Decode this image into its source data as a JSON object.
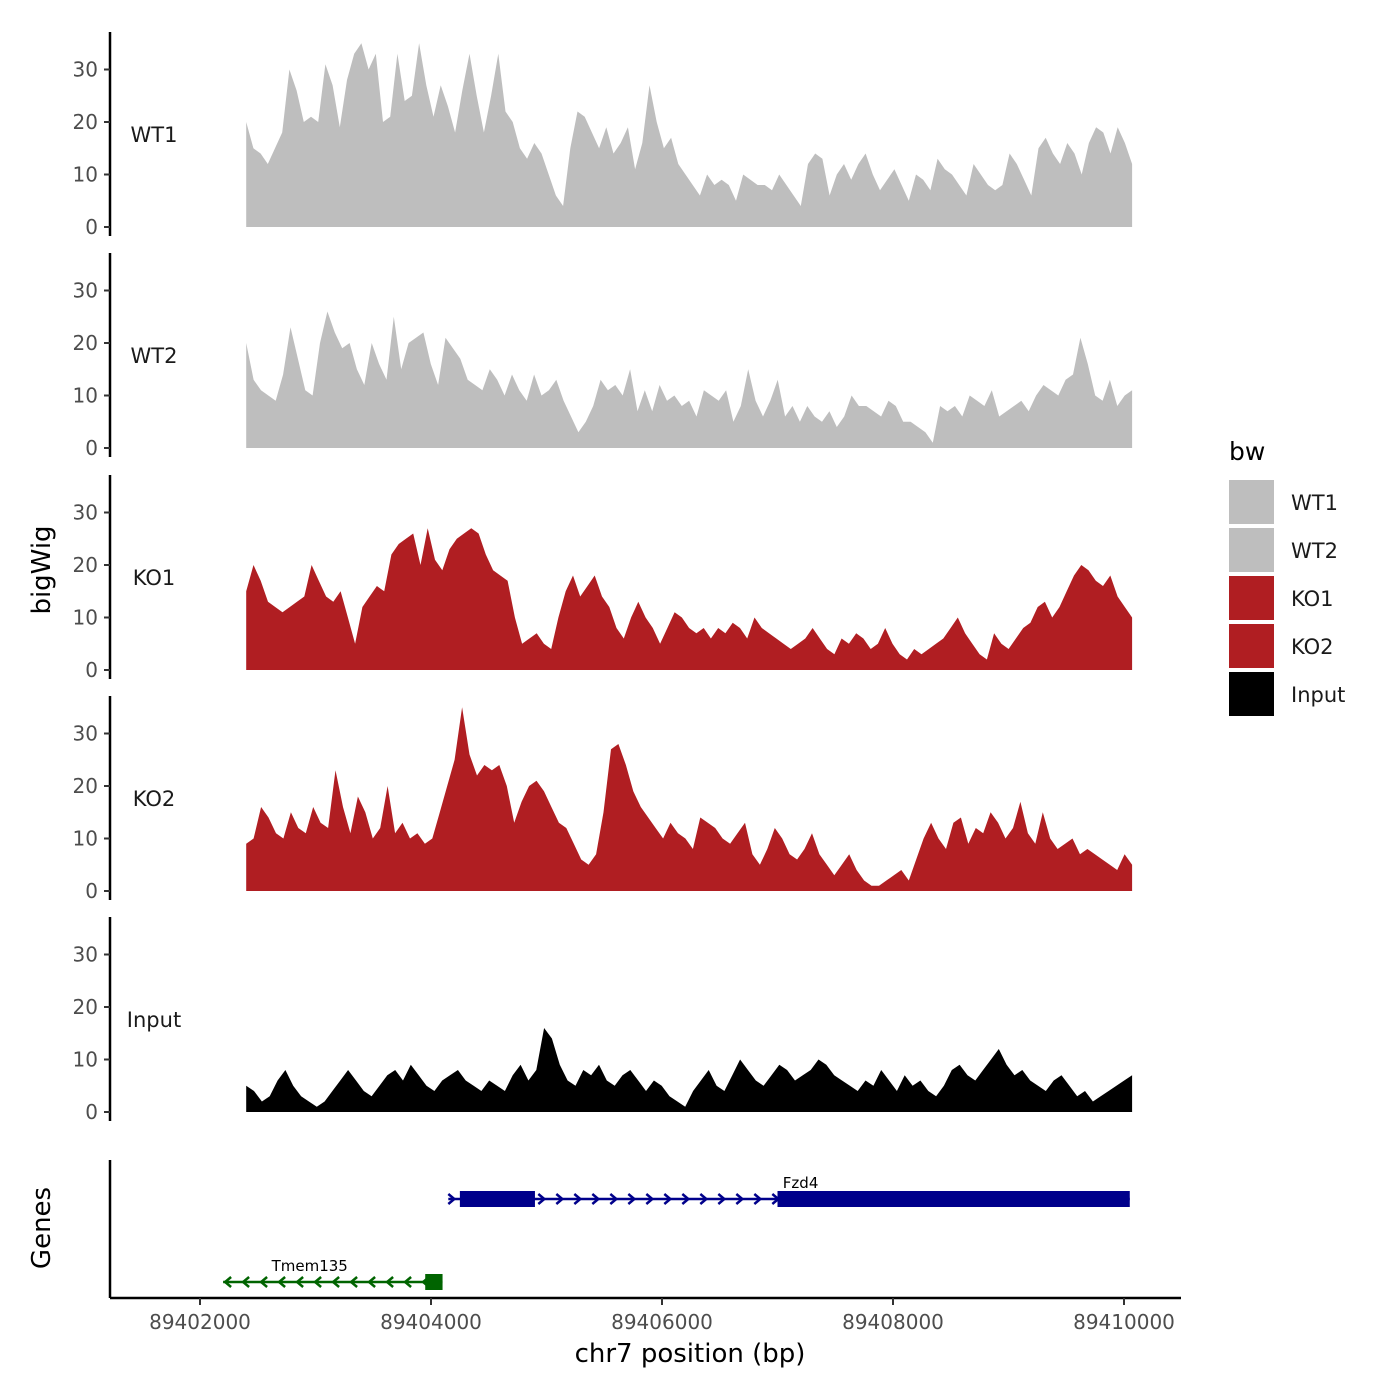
{
  "chart_data": {
    "type": "area",
    "figure_kind": "genome browser coverage tracks",
    "ylabel": "bigWig",
    "genes_label": "Genes",
    "xlabel": "chr7 position (bp)",
    "xlim": [
      89401600,
      89410600
    ],
    "x_ticks": [
      89402000,
      89404000,
      89406000,
      89408000,
      89410000
    ],
    "x_tick_labels": [
      "89402000",
      "89404000",
      "89406000",
      "89408000",
      "89410000"
    ],
    "ylim": [
      0,
      37
    ],
    "y_ticks": [
      0,
      10,
      20,
      30
    ],
    "y_tick_labels": [
      "0",
      "10",
      "20",
      "30"
    ],
    "signal_range_bp": [
      89402400,
      89410070
    ],
    "tracks": [
      {
        "name": "WT1",
        "color": "#bebebe",
        "values": [
          20,
          15,
          14,
          12,
          15,
          18,
          30,
          26,
          20,
          21,
          20,
          31,
          27,
          19,
          28,
          33,
          35,
          30,
          33,
          20,
          21,
          33,
          24,
          25,
          35,
          27,
          21,
          27,
          23,
          18,
          26,
          33,
          25,
          18,
          25,
          33,
          22,
          20,
          15,
          13,
          16,
          14,
          10,
          6,
          4,
          15,
          22,
          21,
          18,
          15,
          19,
          14,
          16,
          19,
          11,
          16,
          27,
          20,
          15,
          17,
          12,
          10,
          8,
          6,
          10,
          8,
          9,
          8,
          5,
          10,
          9,
          8,
          8,
          7,
          10,
          8,
          6,
          4,
          12,
          14,
          13,
          6,
          10,
          12,
          9,
          12,
          14,
          10,
          7,
          9,
          11,
          8,
          5,
          10,
          9,
          7,
          13,
          11,
          10,
          8,
          6,
          12,
          10,
          8,
          7,
          8,
          14,
          12,
          9,
          6,
          15,
          17,
          14,
          12,
          16,
          14,
          10,
          16,
          19,
          18,
          14,
          19,
          16,
          12
        ]
      },
      {
        "name": "WT2",
        "color": "#bebebe",
        "values": [
          20,
          13,
          11,
          10,
          9,
          14,
          23,
          17,
          11,
          10,
          20,
          26,
          22,
          19,
          20,
          15,
          12,
          20,
          16,
          13,
          25,
          15,
          20,
          21,
          22,
          16,
          12,
          21,
          19,
          17,
          13,
          12,
          11,
          15,
          13,
          10,
          14,
          11,
          9,
          14,
          10,
          11,
          13,
          9,
          6,
          3,
          5,
          8,
          13,
          11,
          12,
          10,
          15,
          7,
          11,
          7,
          12,
          9,
          10,
          8,
          9,
          6,
          11,
          10,
          9,
          11,
          5,
          8,
          15,
          9,
          6,
          9,
          13,
          6,
          8,
          5,
          8,
          6,
          5,
          7,
          4,
          6,
          10,
          8,
          8,
          7,
          6,
          9,
          8,
          5,
          5,
          4,
          3,
          1,
          8,
          7,
          8,
          6,
          10,
          9,
          8,
          11,
          6,
          7,
          8,
          9,
          7,
          10,
          12,
          11,
          10,
          13,
          14,
          21,
          16,
          10,
          9,
          13,
          8,
          10,
          11
        ]
      },
      {
        "name": "KO1",
        "color": "#b01e22",
        "values": [
          15,
          20,
          17,
          13,
          12,
          11,
          12,
          13,
          14,
          20,
          17,
          14,
          13,
          15,
          10,
          5,
          12,
          14,
          16,
          15,
          22,
          24,
          25,
          26,
          20,
          27,
          21,
          19,
          23,
          25,
          26,
          27,
          26,
          22,
          19,
          18,
          17,
          10,
          5,
          6,
          7,
          5,
          4,
          10,
          15,
          18,
          14,
          16,
          18,
          14,
          12,
          8,
          6,
          10,
          13,
          10,
          8,
          5,
          8,
          11,
          10,
          8,
          7,
          8,
          6,
          8,
          7,
          9,
          8,
          6,
          10,
          8,
          7,
          6,
          5,
          4,
          5,
          6,
          8,
          6,
          4,
          3,
          6,
          5,
          7,
          6,
          4,
          5,
          8,
          5,
          3,
          2,
          4,
          3,
          4,
          5,
          6,
          8,
          10,
          7,
          5,
          3,
          2,
          7,
          5,
          4,
          6,
          8,
          9,
          12,
          13,
          10,
          12,
          15,
          18,
          20,
          19,
          17,
          16,
          18,
          14,
          12,
          10
        ]
      },
      {
        "name": "KO2",
        "color": "#b01e22",
        "values": [
          9,
          10,
          16,
          14,
          11,
          10,
          15,
          12,
          11,
          16,
          13,
          12,
          23,
          16,
          11,
          18,
          15,
          10,
          12,
          20,
          11,
          13,
          10,
          11,
          9,
          10,
          15,
          20,
          25,
          35,
          26,
          22,
          24,
          23,
          24,
          20,
          13,
          17,
          20,
          21,
          19,
          16,
          13,
          12,
          9,
          6,
          5,
          7,
          15,
          27,
          28,
          24,
          19,
          16,
          14,
          12,
          10,
          13,
          11,
          10,
          8,
          14,
          13,
          12,
          10,
          9,
          11,
          13,
          7,
          5,
          8,
          12,
          10,
          7,
          6,
          8,
          11,
          7,
          5,
          3,
          5,
          7,
          4,
          2,
          1,
          1,
          2,
          3,
          4,
          2,
          6,
          10,
          13,
          10,
          8,
          13,
          14,
          9,
          12,
          11,
          15,
          13,
          10,
          12,
          17,
          11,
          9,
          15,
          10,
          8,
          9,
          10,
          7,
          8,
          7,
          6,
          5,
          4,
          7,
          5
        ]
      },
      {
        "name": "Input",
        "color": "#000000",
        "values": [
          5,
          4,
          2,
          3,
          6,
          8,
          5,
          3,
          2,
          1,
          2,
          4,
          6,
          8,
          6,
          4,
          3,
          5,
          7,
          8,
          6,
          9,
          7,
          5,
          4,
          6,
          7,
          8,
          6,
          5,
          4,
          6,
          5,
          4,
          7,
          9,
          6,
          8,
          16,
          14,
          9,
          6,
          5,
          8,
          7,
          9,
          6,
          5,
          7,
          8,
          6,
          4,
          6,
          5,
          3,
          2,
          1,
          4,
          6,
          8,
          5,
          4,
          7,
          10,
          8,
          6,
          5,
          7,
          9,
          8,
          6,
          7,
          8,
          10,
          9,
          7,
          6,
          5,
          4,
          6,
          5,
          8,
          6,
          4,
          7,
          5,
          6,
          4,
          3,
          5,
          8,
          9,
          7,
          6,
          8,
          10,
          12,
          9,
          7,
          8,
          6,
          5,
          4,
          6,
          7,
          5,
          3,
          4,
          2,
          3,
          4,
          5,
          6,
          7
        ]
      }
    ],
    "genes": [
      {
        "name": "Tmem135",
        "color": "#006400",
        "strand": "-",
        "start": 89402200,
        "end": 89404100,
        "thick_start": 89403950,
        "thick_end": 89404100,
        "row": 2
      },
      {
        "name": "Fzd4",
        "color": "#00008b",
        "strand": "+",
        "start": 89404150,
        "end": 89410050,
        "exons": [
          [
            89404250,
            89404900
          ],
          [
            89407000,
            89410050
          ]
        ],
        "row": 1
      }
    ]
  },
  "legend": {
    "title": "bw",
    "items": [
      {
        "label": "WT1",
        "color": "#bebebe"
      },
      {
        "label": "WT2",
        "color": "#bebebe"
      },
      {
        "label": "KO1",
        "color": "#b01e22"
      },
      {
        "label": "KO2",
        "color": "#b01e22"
      },
      {
        "label": "Input",
        "color": "#000000"
      }
    ]
  }
}
